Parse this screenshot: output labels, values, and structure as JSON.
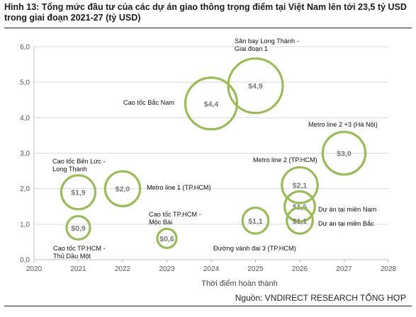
{
  "title": "Hình 13: Tổng mức đầu tư của các dự án giao thông trọng điểm tại Việt Nam lên tới 23,5 tỷ USD trong giai đoạn 2021-27 (tỷ USD)",
  "source": "Nguồn: VNDIRECT RESEARCH TỔNG HỢP",
  "colors": {
    "bubble_stroke": "#9bbb59",
    "grid": "#d9d9d9",
    "axis": "#bfbfbf"
  },
  "chart_data": {
    "type": "scatter",
    "xlabel": "Thời điểm hoàn thành",
    "ylabel": "",
    "xlim": [
      2020,
      2028
    ],
    "ylim": [
      0,
      6
    ],
    "x_ticks": [
      "2020",
      "2021",
      "2022",
      "2023",
      "2024",
      "2025",
      "2026",
      "2027",
      "2028"
    ],
    "y_ticks": [
      "0,0",
      "1,0",
      "2,0",
      "3,0",
      "4,0",
      "5,0",
      "6,0"
    ],
    "grid": true,
    "points": [
      {
        "name": "Cao tốc Bến Lức - Long Thành",
        "x": 2021,
        "y": 1.9,
        "size": 1.9,
        "label": "$1,9",
        "annotation": [
          "Cao tốc Bến Lức -",
          "Long Thành"
        ]
      },
      {
        "name": "Cao tốc TP.HCM - Thủ Dầu Một",
        "x": 2021,
        "y": 0.9,
        "size": 0.9,
        "label": "$0,9",
        "annotation": [
          "Cao tốc TP.HCM -",
          "Thủ Dầu Một"
        ]
      },
      {
        "name": "Metro line 1 (TP.HCM)",
        "x": 2022,
        "y": 2.0,
        "size": 2.0,
        "label": "$2,0",
        "annotation": [
          "Metro line 1 (TP.HCM)"
        ]
      },
      {
        "name": "Cao tốc TP.HCM - Mộc Bài",
        "x": 2023,
        "y": 0.6,
        "size": 0.6,
        "label": "$0,6",
        "annotation": [
          "Cao tốc TP.HCM -",
          "Mộc Bài"
        ]
      },
      {
        "name": "Cao tốc Bắc Nam",
        "x": 2024,
        "y": 4.4,
        "size": 4.4,
        "label": "$4,4",
        "annotation": [
          "Cao tốc Bắc Nam"
        ]
      },
      {
        "name": "Sân bay Long Thành - Giai đoạn 1",
        "x": 2025,
        "y": 4.9,
        "size": 4.9,
        "label": "$4,9",
        "annotation": [
          "Sân bay Long Thành -",
          "Giai đoạn 1"
        ]
      },
      {
        "name": "Đường vành đai 3 (TP.HCM)",
        "x": 2025,
        "y": 1.1,
        "size": 1.1,
        "label": "$1,1",
        "annotation": [
          "Đường vành đai 3 (TP.HCM)"
        ]
      },
      {
        "name": "Metro line 2 (TP.HCM)",
        "x": 2026,
        "y": 2.1,
        "size": 2.1,
        "label": "$2,1",
        "annotation": [
          "Metro line 2 (TP.HCM)"
        ]
      },
      {
        "name": "Dự án tại miền Nam",
        "x": 2026,
        "y": 1.5,
        "size": 1.5,
        "label": "$1,5",
        "annotation": [
          "Dự án tại miền Nam"
        ]
      },
      {
        "name": "Dự án tại miền Bắc",
        "x": 2026,
        "y": 1.1,
        "size": 1.1,
        "label": "$1,1",
        "annotation": [
          "Dự án tại miền Bắc"
        ]
      },
      {
        "name": "Metro line 2 +3 (Hà Nội)",
        "x": 2027,
        "y": 3.0,
        "size": 3.0,
        "label": "$3,0",
        "annotation": [
          "Metro line 2 +3 (Hà Nội)"
        ]
      }
    ]
  }
}
